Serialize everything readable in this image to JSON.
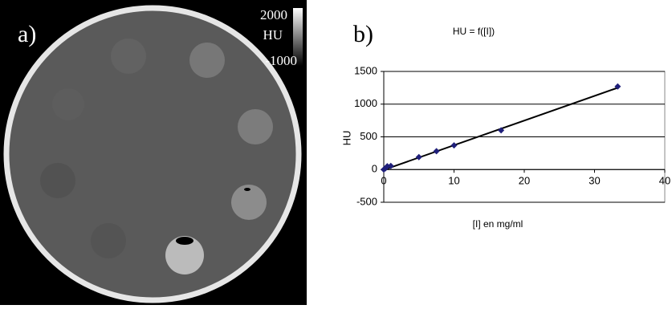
{
  "image_panel": {
    "label": "a)",
    "colorbar_max": "2000",
    "colorbar_unit": "HU",
    "colorbar_min": "-1000"
  },
  "chart_data": {
    "type": "scatter",
    "panel_label": "b)",
    "title": "HU = f([I])",
    "x_label": "[I] en mg/ml",
    "y_label": "HU",
    "series": [
      {
        "name": "HU",
        "color": "#1f1f7a",
        "x": [
          0,
          0.25,
          0.5,
          1,
          5,
          7.5,
          10,
          16.7,
          33.3
        ],
        "values": [
          0,
          20,
          50,
          55,
          190,
          280,
          370,
          600,
          1270
        ],
        "errors": [
          30,
          30,
          30,
          30,
          40,
          40,
          40,
          40,
          40
        ]
      }
    ],
    "trend_line": {
      "color": "#000000",
      "x": [
        0,
        33.3
      ],
      "y": [
        -5,
        1250
      ]
    },
    "xlim": [
      0,
      40
    ],
    "xticks": [
      0,
      10,
      20,
      30,
      40
    ],
    "ylim": [
      -500,
      1500
    ],
    "yticks": [
      -500,
      0,
      500,
      1000,
      1500
    ],
    "grid": true
  }
}
